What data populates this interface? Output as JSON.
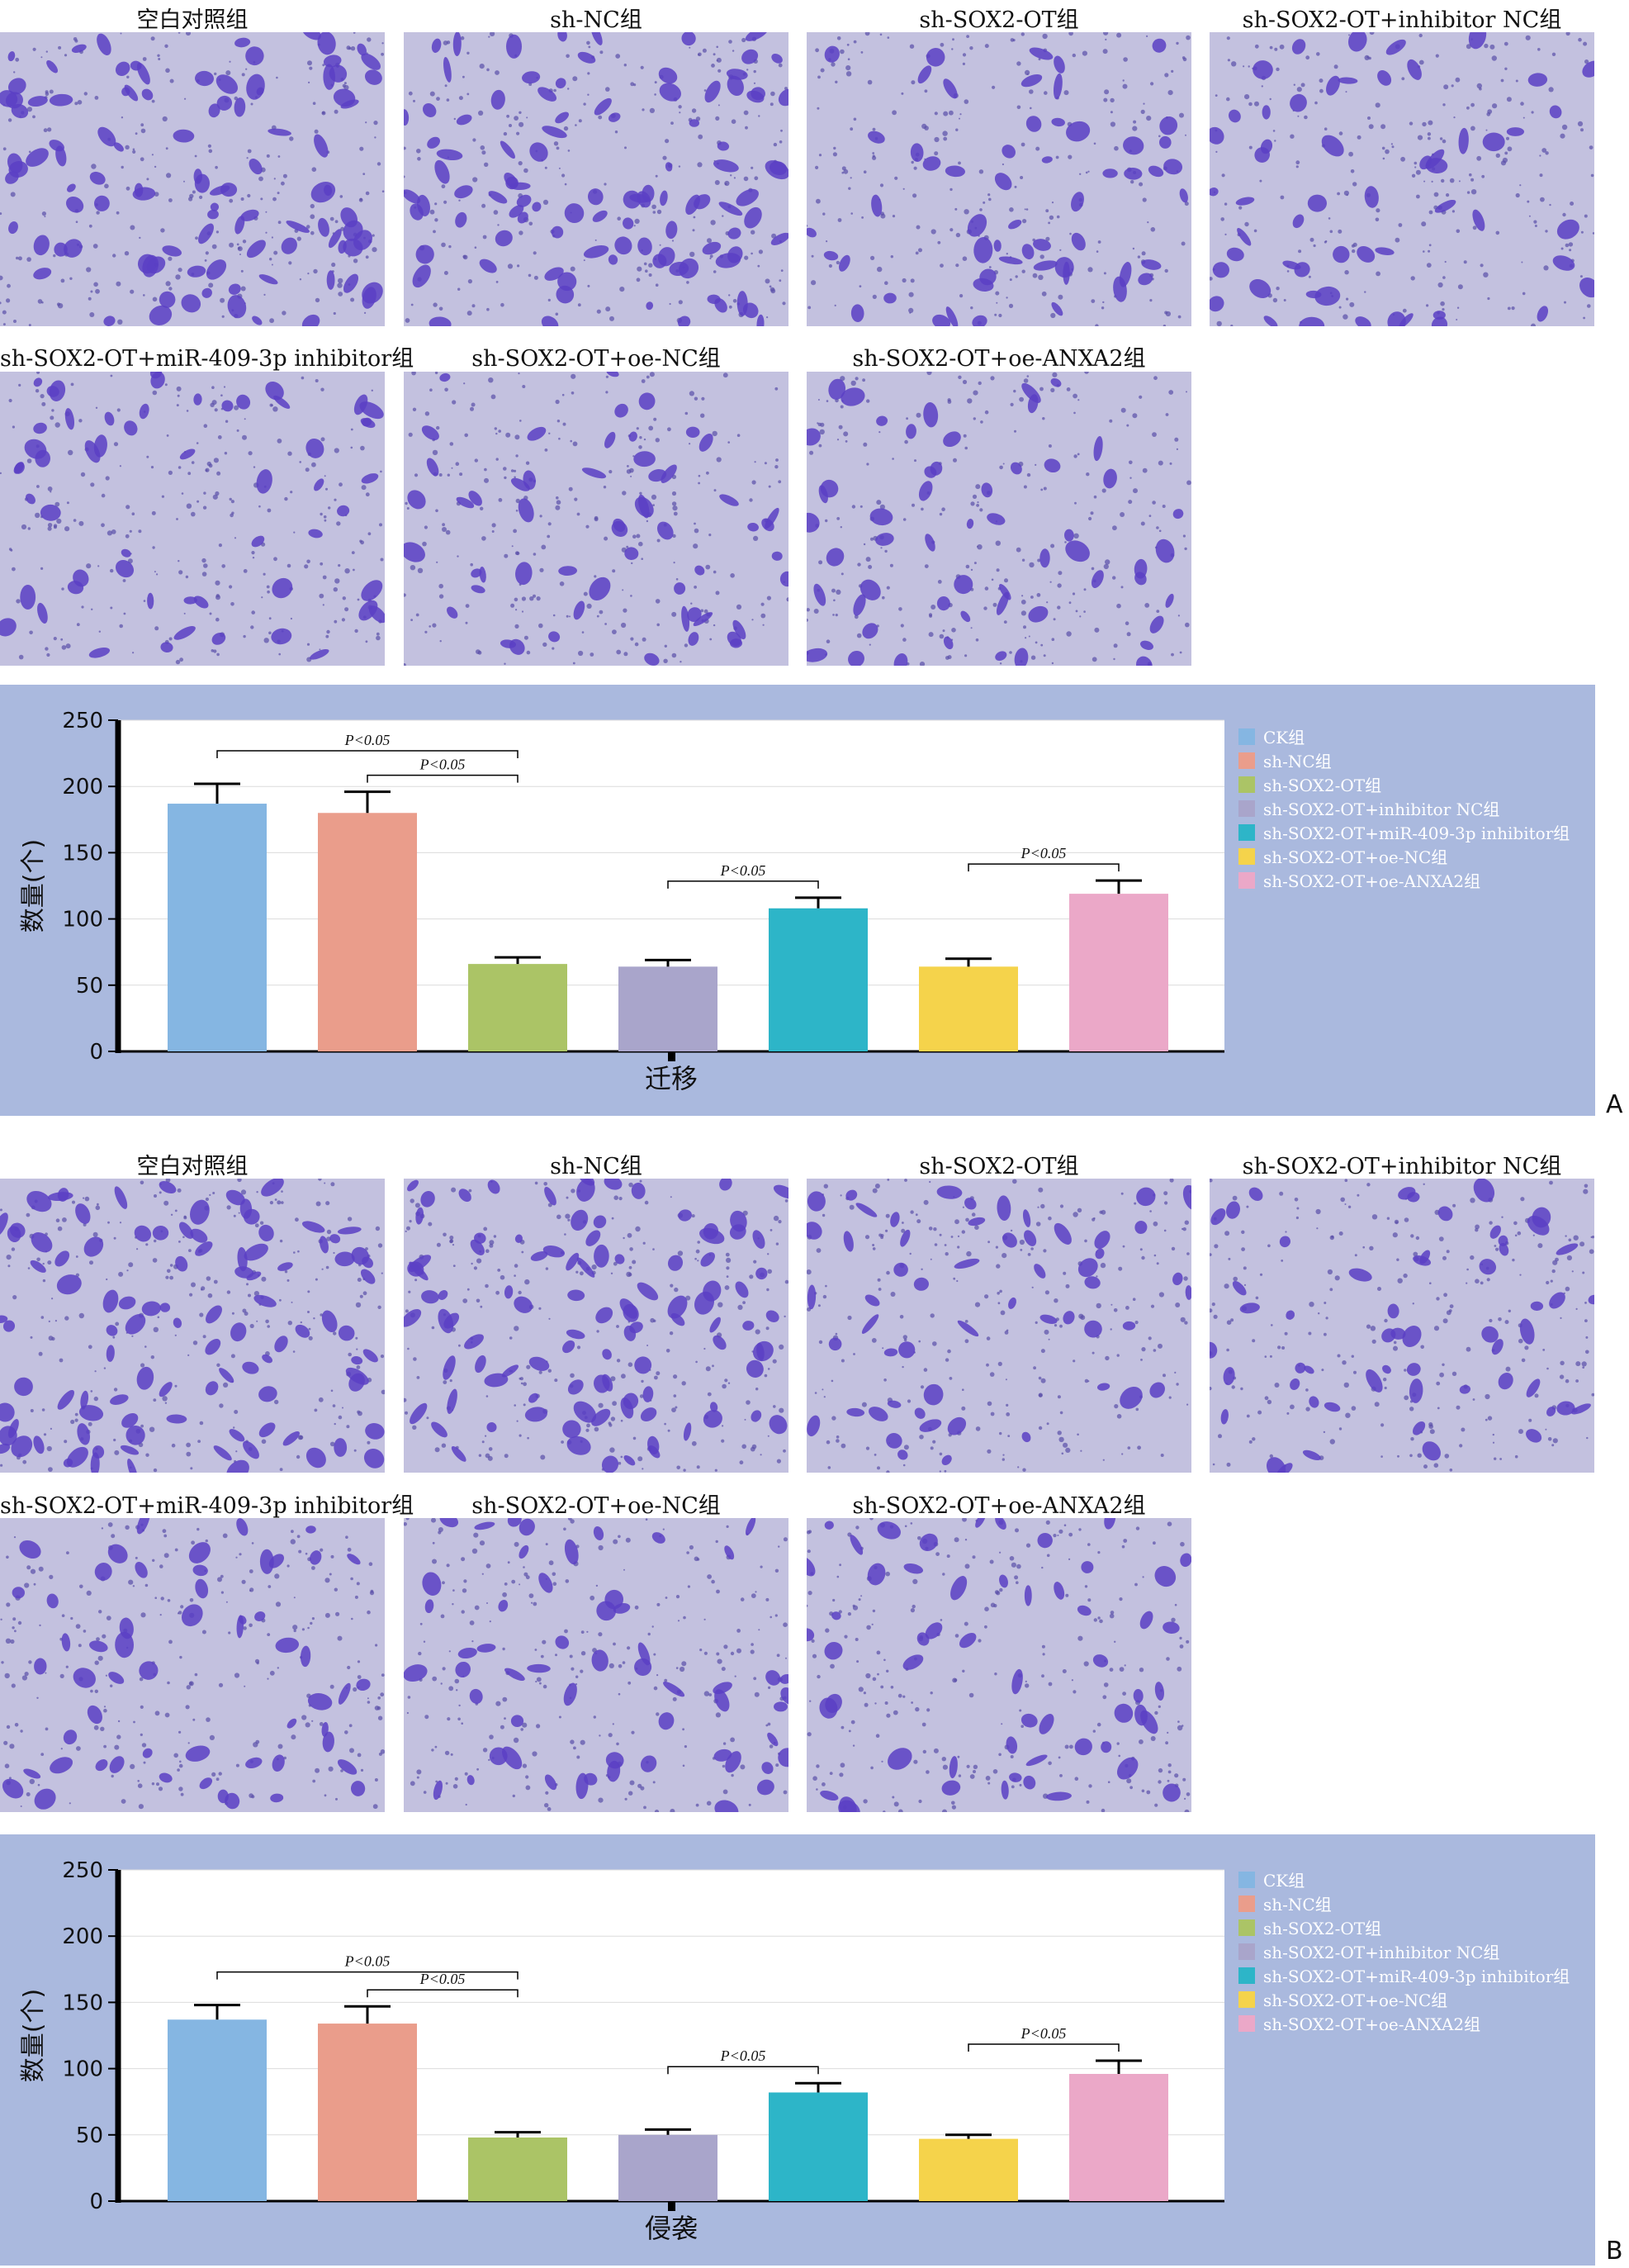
{
  "figures": [
    {
      "letter": "A",
      "image_labels": [
        "空白对照组",
        "sh-NC组",
        "sh-SOX2-OT组",
        "sh-SOX2-OT+inhibitor NC组",
        "sh-SOX2-OT+miR-409-3p inhibitor组",
        "sh-SOX2-OT+oe-NC组",
        "sh-SOX2-OT+oe-ANXA2组"
      ],
      "legend": [
        "CK组",
        "sh-NC组",
        "sh-SOX2-OT组",
        "sh-SOX2-OT+inhibitor NC组",
        "sh-SOX2-OT+miR-409-3p inhibitor组",
        "sh-SOX2-OT+oe-NC组",
        "sh-SOX2-OT+oe-ANXA2组"
      ]
    },
    {
      "letter": "B",
      "image_labels": [
        "空白对照组",
        "sh-NC组",
        "sh-SOX2-OT组",
        "sh-SOX2-OT+inhibitor NC组",
        "sh-SOX2-OT+miR-409-3p inhibitor组",
        "sh-SOX2-OT+oe-NC组",
        "sh-SOX2-OT+oe-ANXA2组"
      ],
      "legend": [
        "CK组",
        "sh-NC组",
        "sh-SOX2-OT组",
        "sh-SOX2-OT+inhibitor NC组",
        "sh-SOX2-OT+miR-409-3p inhibitor组",
        "sh-SOX2-OT+oe-NC组",
        "sh-SOX2-OT+oe-ANXA2组"
      ]
    }
  ],
  "colors": [
    "#85b6e2",
    "#ea9d8b",
    "#abc466",
    "#a9a5cb",
    "#2db5c8",
    "#f5d34b",
    "#eba8c8"
  ],
  "chart_data": [
    {
      "type": "bar",
      "title": "",
      "xlabel": "迁移",
      "ylabel": "数量(个)",
      "ylim": [
        0,
        250
      ],
      "yticks": [
        "0",
        "50",
        "100",
        "150",
        "200",
        "250"
      ],
      "grid": true,
      "legend_position": "right",
      "series": [
        {
          "name": "CK组",
          "value": 187,
          "error": 15
        },
        {
          "name": "sh-NC组",
          "value": 180,
          "error": 16
        },
        {
          "name": "sh-SOX2-OT组",
          "value": 66,
          "error": 5
        },
        {
          "name": "sh-SOX2-OT+inhibitor NC组",
          "value": 64,
          "error": 5
        },
        {
          "name": "sh-SOX2-OT+miR-409-3p inhibitor组",
          "value": 108,
          "error": 8
        },
        {
          "name": "sh-SOX2-OT+oe-NC组",
          "value": 64,
          "error": 6
        },
        {
          "name": "sh-SOX2-OT+oe-ANXA2组",
          "value": 119,
          "error": 10
        }
      ],
      "significance": [
        {
          "from": 0,
          "to": 2,
          "label": "P<0.05"
        },
        {
          "from": 1,
          "to": 2,
          "label": "P<0.05"
        },
        {
          "from": 3,
          "to": 4,
          "label": "P<0.05"
        },
        {
          "from": 5,
          "to": 6,
          "label": "P<0.05"
        }
      ]
    },
    {
      "type": "bar",
      "title": "",
      "xlabel": "侵袭",
      "ylabel": "数量(个)",
      "ylim": [
        0,
        250
      ],
      "yticks": [
        "0",
        "50",
        "100",
        "150",
        "200",
        "250"
      ],
      "grid": true,
      "legend_position": "right",
      "series": [
        {
          "name": "CK组",
          "value": 137,
          "error": 11
        },
        {
          "name": "sh-NC组",
          "value": 134,
          "error": 13
        },
        {
          "name": "sh-SOX2-OT组",
          "value": 48,
          "error": 4
        },
        {
          "name": "sh-SOX2-OT+inhibitor NC组",
          "value": 50,
          "error": 4
        },
        {
          "name": "sh-SOX2-OT+miR-409-3p inhibitor组",
          "value": 82,
          "error": 7
        },
        {
          "name": "sh-SOX2-OT+oe-NC组",
          "value": 47,
          "error": 3
        },
        {
          "name": "sh-SOX2-OT+oe-ANXA2组",
          "value": 96,
          "error": 10
        }
      ],
      "significance": [
        {
          "from": 0,
          "to": 2,
          "label": "P<0.05"
        },
        {
          "from": 1,
          "to": 2,
          "label": "P<0.05"
        },
        {
          "from": 3,
          "to": 4,
          "label": "P<0.05"
        },
        {
          "from": 5,
          "to": 6,
          "label": "P<0.05"
        }
      ]
    }
  ]
}
